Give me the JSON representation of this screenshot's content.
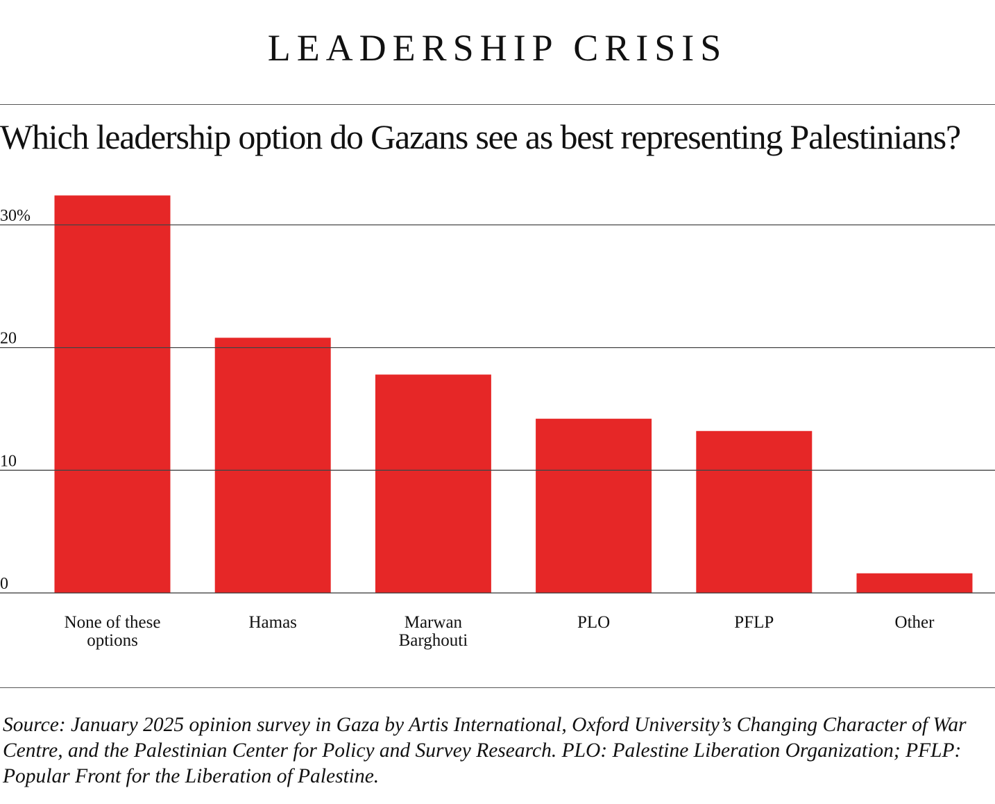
{
  "header": {
    "title": "LEADERSHIP CRISIS"
  },
  "subtitle": "Which leadership option do Gazans see as best representing Palestinians?",
  "chart_data": {
    "type": "bar",
    "title": "Which leadership option do Gazans see as best representing Palestinians?",
    "categories": [
      [
        "None of these",
        "options"
      ],
      [
        "Hamas"
      ],
      [
        "Marwan",
        "Barghouti"
      ],
      [
        "PLO"
      ],
      [
        "PFLP"
      ],
      [
        "Other"
      ]
    ],
    "values": [
      32.4,
      20.8,
      17.8,
      14.2,
      13.2,
      1.6
    ],
    "yticks": [
      0,
      10,
      20,
      30
    ],
    "ytick_labels": [
      "0",
      "10",
      "20",
      "30%"
    ],
    "ylim": [
      0,
      32.4
    ],
    "grid": true,
    "bar_color": "#e62727"
  },
  "source": "Source: January 2025 opinion survey in Gaza by Artis International, Oxford University’s Changing Character of War Centre, and the Palestinian Center for Policy and Survey Research. PLO: Palestine Liberation Organization; PFLP: Popular Front for the Liberation of Palestine."
}
